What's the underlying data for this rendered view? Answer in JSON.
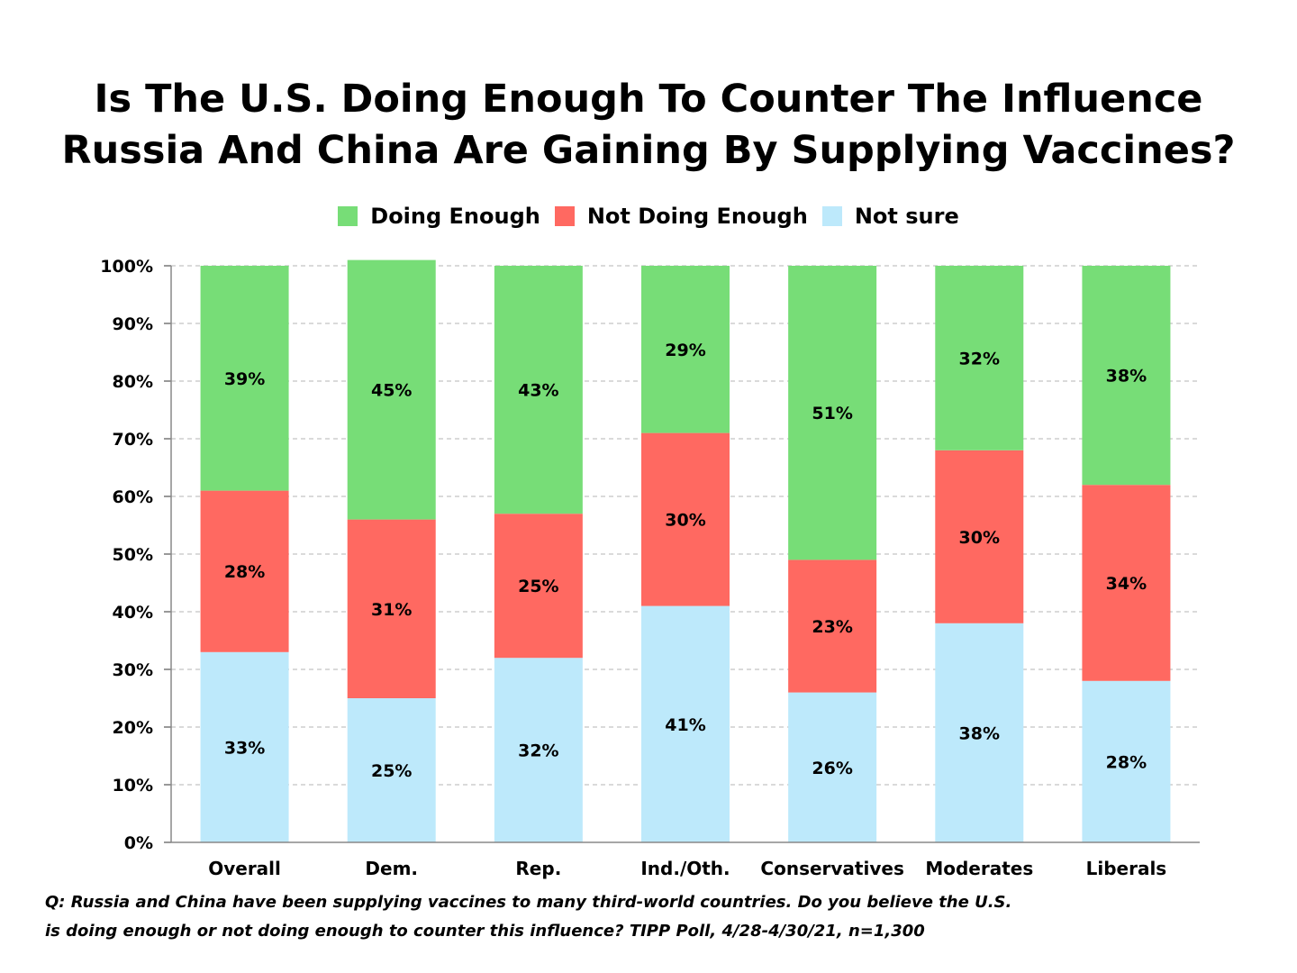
{
  "chart_data": {
    "type": "bar",
    "stacked": true,
    "title_lines": [
      "Is The U.S. Doing Enough To Counter The Influence",
      "Russia And China Are Gaining By Supplying Vaccines?"
    ],
    "categories": [
      "Overall",
      "Dem.",
      "Rep.",
      "Ind./Oth.",
      "Conservatives",
      "Moderates",
      "Liberals"
    ],
    "series": [
      {
        "name": "Not sure",
        "color": "#bde9fb",
        "values": [
          33,
          25,
          32,
          41,
          26,
          38,
          28
        ]
      },
      {
        "name": "Not Doing Enough",
        "color": "#ff6961",
        "values": [
          28,
          31,
          25,
          30,
          23,
          30,
          34
        ]
      },
      {
        "name": "Doing Enough",
        "color": "#77dd77",
        "values": [
          39,
          45,
          43,
          29,
          51,
          32,
          38
        ]
      }
    ],
    "legend_order": [
      "Doing Enough",
      "Not Doing Enough",
      "Not sure"
    ],
    "ylim": [
      0,
      100
    ],
    "yticks": [
      "0%",
      "10%",
      "20%",
      "30%",
      "40%",
      "50%",
      "60%",
      "70%",
      "80%",
      "90%",
      "100%"
    ],
    "grid": true,
    "legend_position": "top-center"
  },
  "footnote": {
    "line1": "Q:  Russia and China have been supplying vaccines to many third-world countries.  Do you believe the U.S.",
    "line2": "is doing enough or not doing enough to counter this influence? TIPP Poll, 4/28-4/30/21, n=1,300"
  }
}
